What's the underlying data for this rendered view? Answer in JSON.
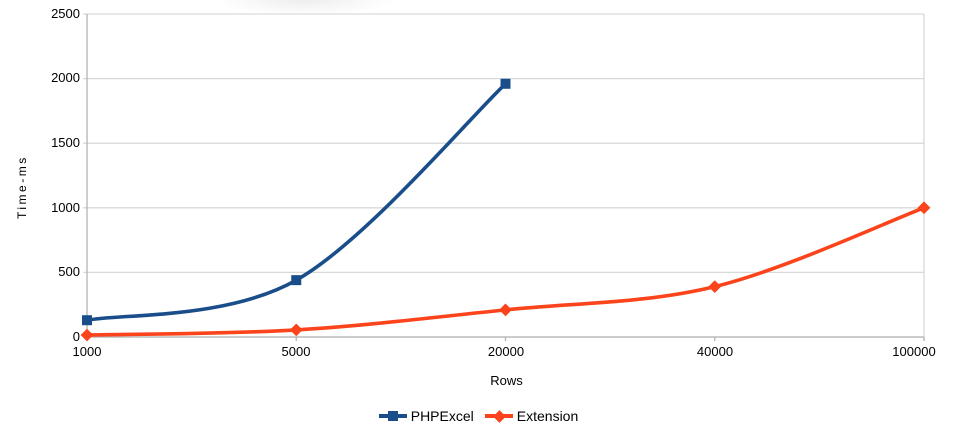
{
  "chart_data": {
    "type": "line",
    "xlabel": "Rows",
    "ylabel": "Time-ms",
    "categories": [
      "1000",
      "5000",
      "20000",
      "40000",
      "100000"
    ],
    "ylim": [
      0,
      2500
    ],
    "yticks": [
      0,
      500,
      1000,
      1500,
      2000,
      2500
    ],
    "grid": true,
    "smooth_lines": true,
    "legend_position": "bottom",
    "series": [
      {
        "name": "PHPExcel",
        "color": "#1a4e8a",
        "marker": "square",
        "values": [
          130,
          440,
          1960,
          null,
          null
        ]
      },
      {
        "name": "Extension",
        "color": "#fb431c",
        "marker": "diamond",
        "values": [
          15,
          55,
          210,
          390,
          1000
        ]
      }
    ],
    "colors": {
      "grid": "#d9d9d9",
      "axis": "#b3b3b3",
      "text": "#000000",
      "background": "#ffffff"
    }
  }
}
